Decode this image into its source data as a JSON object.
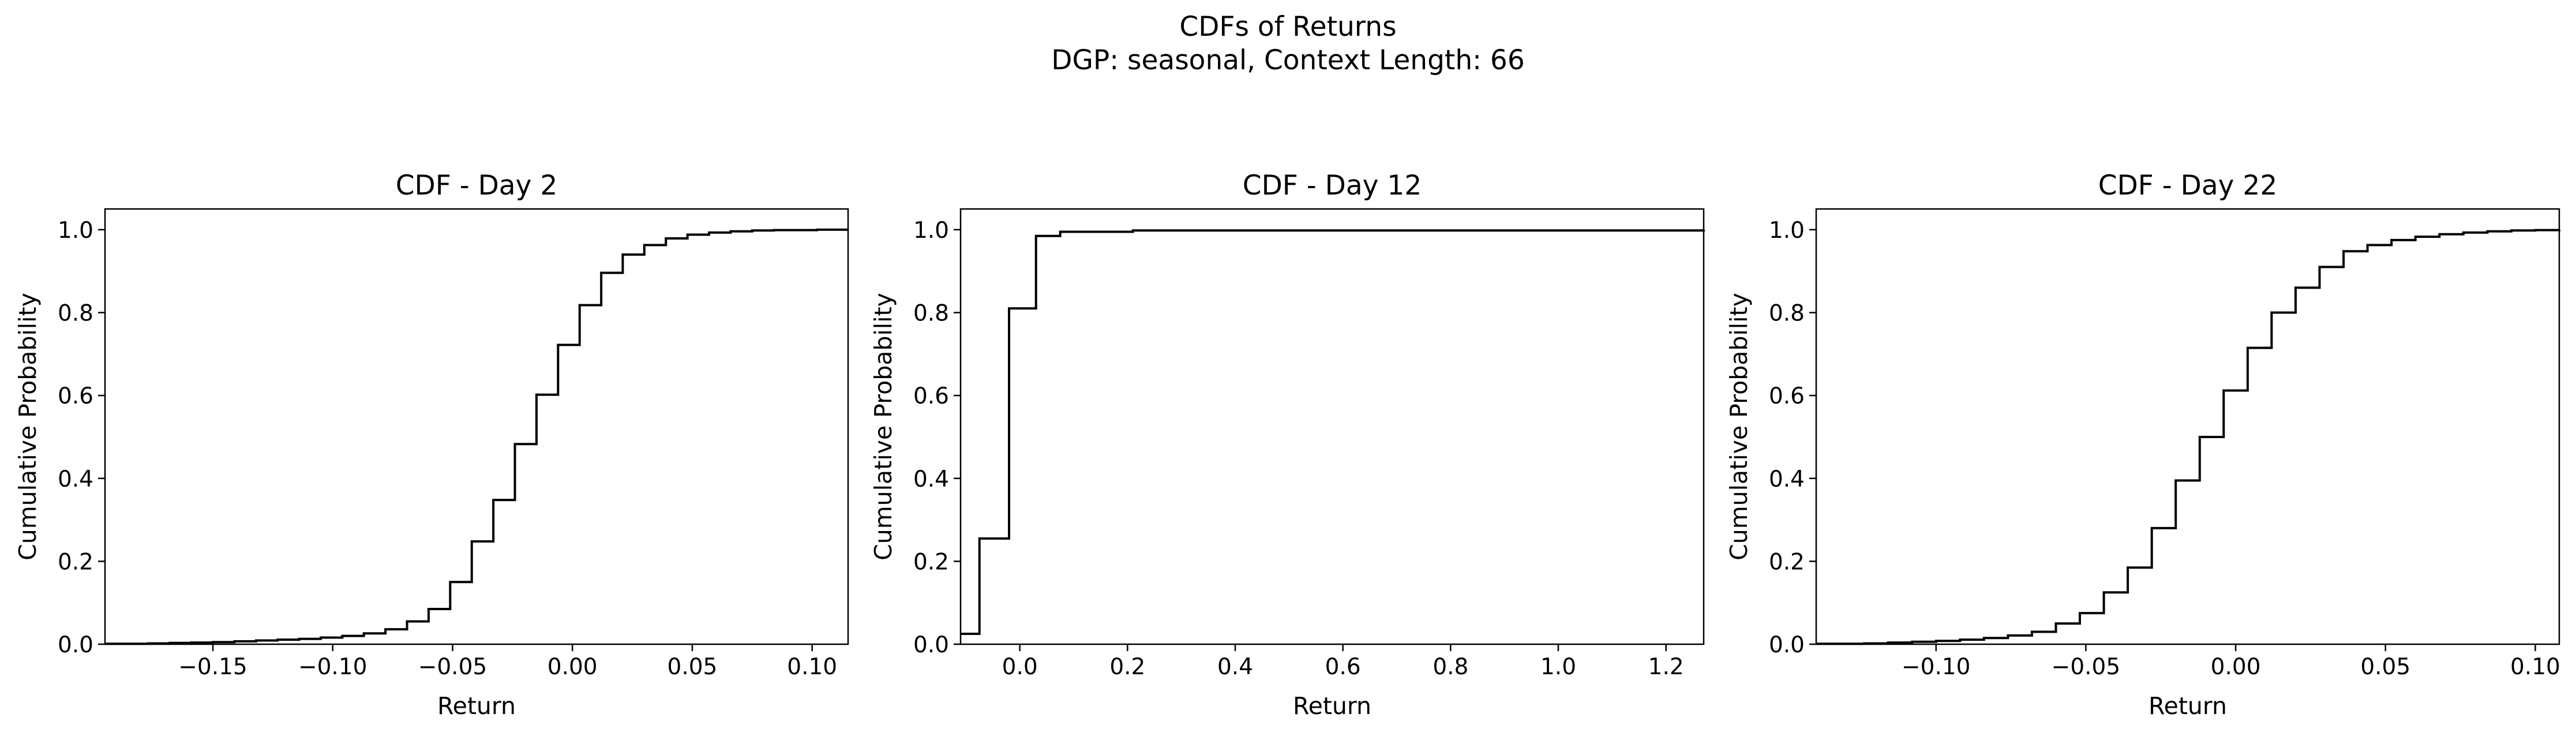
{
  "figure": {
    "title_line1": "CDFs of Returns",
    "title_line2": "DGP: seasonal, Context Length: 66"
  },
  "chart_data": [
    {
      "type": "line",
      "step": true,
      "title": "CDF - Day 2",
      "xlabel": "Return",
      "ylabel": "Cumulative Probability",
      "xlim": [
        -0.195,
        0.115
      ],
      "ylim": [
        0.0,
        1.05
      ],
      "xticks": [
        -0.15,
        -0.1,
        -0.05,
        0.0,
        0.05,
        0.1
      ],
      "xtick_labels": [
        "−0.15",
        "−0.10",
        "−0.05",
        "0.00",
        "0.05",
        "0.10"
      ],
      "yticks": [
        0.0,
        0.2,
        0.4,
        0.6,
        0.8,
        1.0
      ],
      "ytick_labels": [
        "0.0",
        "0.2",
        "0.4",
        "0.6",
        "0.8",
        "1.0"
      ],
      "grid": false,
      "line_color": "#000000",
      "x": [
        -0.195,
        -0.186,
        -0.177,
        -0.168,
        -0.159,
        -0.15,
        -0.141,
        -0.132,
        -0.123,
        -0.114,
        -0.105,
        -0.096,
        -0.087,
        -0.078,
        -0.069,
        -0.06,
        -0.051,
        -0.042,
        -0.033,
        -0.024,
        -0.015,
        -0.006,
        0.003,
        0.012,
        0.021,
        0.03,
        0.039,
        0.048,
        0.057,
        0.066,
        0.075,
        0.084,
        0.093,
        0.102,
        0.111,
        0.115
      ],
      "y": [
        0.001,
        0.001,
        0.002,
        0.003,
        0.004,
        0.005,
        0.007,
        0.009,
        0.011,
        0.013,
        0.016,
        0.02,
        0.026,
        0.036,
        0.055,
        0.085,
        0.15,
        0.248,
        0.348,
        0.483,
        0.602,
        0.722,
        0.818,
        0.896,
        0.94,
        0.963,
        0.979,
        0.988,
        0.993,
        0.996,
        0.998,
        0.999,
        0.999,
        1.0,
        1.0,
        1.0
      ]
    },
    {
      "type": "line",
      "step": true,
      "title": "CDF - Day 12",
      "xlabel": "Return",
      "ylabel": "Cumulative Probability",
      "xlim": [
        -0.11,
        1.27
      ],
      "ylim": [
        0.0,
        1.05
      ],
      "xticks": [
        0.0,
        0.2,
        0.4,
        0.6,
        0.8,
        1.0,
        1.2
      ],
      "xtick_labels": [
        "0.0",
        "0.2",
        "0.4",
        "0.6",
        "0.8",
        "1.0",
        "1.2"
      ],
      "yticks": [
        0.0,
        0.2,
        0.4,
        0.6,
        0.8,
        1.0
      ],
      "ytick_labels": [
        "0.0",
        "0.2",
        "0.4",
        "0.6",
        "0.8",
        "1.0"
      ],
      "grid": false,
      "line_color": "#000000",
      "x": [
        -0.11,
        -0.075,
        -0.02,
        0.03,
        0.075,
        0.21,
        1.27
      ],
      "y": [
        0.025,
        0.255,
        0.81,
        0.985,
        0.995,
        0.998,
        1.0
      ]
    },
    {
      "type": "line",
      "step": true,
      "title": "CDF - Day 22",
      "xlabel": "Return",
      "ylabel": "Cumulative Probability",
      "xlim": [
        -0.14,
        0.108
      ],
      "ylim": [
        0.0,
        1.05
      ],
      "xticks": [
        -0.1,
        -0.05,
        0.0,
        0.05,
        0.1
      ],
      "xtick_labels": [
        "−0.10",
        "−0.05",
        "0.00",
        "0.05",
        "0.10"
      ],
      "yticks": [
        0.0,
        0.2,
        0.4,
        0.6,
        0.8,
        1.0
      ],
      "ytick_labels": [
        "0.0",
        "0.2",
        "0.4",
        "0.6",
        "0.8",
        "1.0"
      ],
      "grid": false,
      "line_color": "#000000",
      "x": [
        -0.14,
        -0.132,
        -0.124,
        -0.116,
        -0.108,
        -0.1,
        -0.092,
        -0.084,
        -0.076,
        -0.068,
        -0.06,
        -0.052,
        -0.044,
        -0.036,
        -0.028,
        -0.02,
        -0.012,
        -0.004,
        0.004,
        0.012,
        0.02,
        0.028,
        0.036,
        0.044,
        0.052,
        0.06,
        0.068,
        0.076,
        0.084,
        0.092,
        0.1,
        0.108
      ],
      "y": [
        0.001,
        0.001,
        0.002,
        0.004,
        0.006,
        0.008,
        0.011,
        0.015,
        0.021,
        0.03,
        0.05,
        0.075,
        0.125,
        0.185,
        0.28,
        0.395,
        0.5,
        0.612,
        0.715,
        0.8,
        0.86,
        0.91,
        0.948,
        0.963,
        0.975,
        0.983,
        0.989,
        0.993,
        0.996,
        0.998,
        0.999,
        1.0
      ]
    }
  ]
}
